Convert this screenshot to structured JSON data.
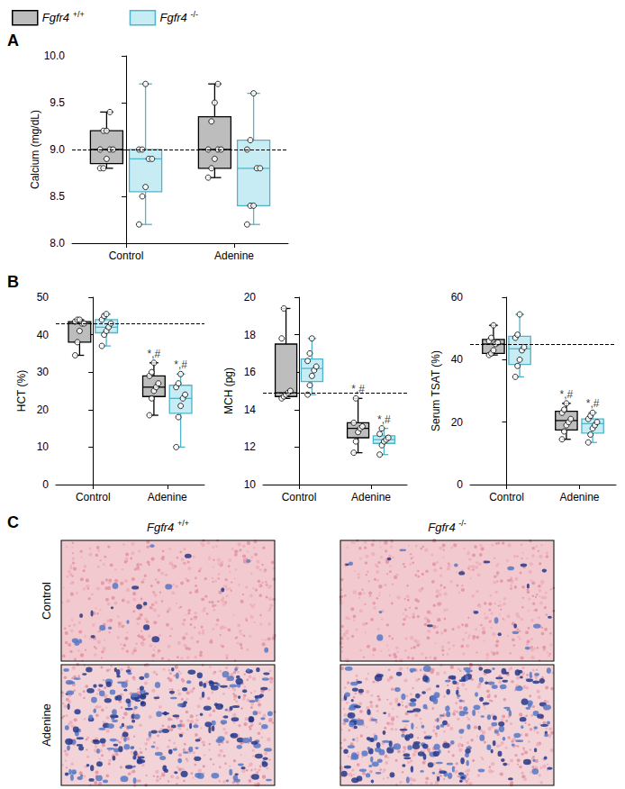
{
  "chart_data": [
    {
      "type": "boxplot",
      "panel": "A",
      "legend": "top-left",
      "ylabel": "Calcium (mg/dL)",
      "categories": [
        "Control",
        "Adenine"
      ],
      "ylim": [
        8,
        10
      ],
      "yticks": [
        {
          "value": 8,
          "label": "8.0"
        },
        {
          "value": 8.5,
          "label": "8.5"
        },
        {
          "value": 9,
          "label": "9.0"
        },
        {
          "value": 9.5,
          "label": "9.5"
        },
        {
          "value": 10,
          "label": "10.0"
        }
      ],
      "reference": 9.0,
      "series": [
        {
          "name": "Fgfr4 +/+",
          "color": "#bdbdbd",
          "boxes": [
            [
              8.8,
              8.85,
              9.0,
              9.2,
              9.4
            ],
            [
              8.7,
              8.8,
              9.0,
              9.35,
              9.7
            ]
          ],
          "points": [
            [
              8.8,
              8.8,
              8.9,
              9.0,
              9.0,
              9.0,
              9.2,
              9.2,
              9.4
            ],
            [
              8.7,
              8.8,
              8.9,
              9.0,
              9.0,
              9.0,
              9.3,
              9.5,
              9.7
            ]
          ],
          "annotations": [
            null,
            null
          ]
        },
        {
          "name": "Fgfr4 -/-",
          "color": "#c8ecf4",
          "boxes": [
            [
              8.2,
              8.55,
              8.9,
              9.0,
              9.7
            ],
            [
              8.2,
              8.4,
              8.8,
              9.1,
              9.6
            ]
          ],
          "points": [
            [
              8.2,
              8.5,
              8.6,
              8.9,
              8.9,
              9.0,
              9.0,
              9.7
            ],
            [
              8.2,
              8.4,
              8.4,
              8.8,
              8.8,
              9.0,
              9.1,
              9.6
            ]
          ],
          "annotations": [
            null,
            null
          ]
        }
      ]
    },
    {
      "type": "boxplot",
      "panel": "B",
      "ylabel": "HCT (%)",
      "categories": [
        "Control",
        "Adenine"
      ],
      "ylim": [
        0,
        50
      ],
      "yticks": [
        0,
        10,
        20,
        30,
        40,
        50
      ],
      "reference": 43,
      "series": [
        {
          "name": "Fgfr4 +/+",
          "color": "#bdbdbd",
          "boxes": [
            [
              34.5,
              38,
              43,
              43.5,
              44
            ],
            [
              18.5,
              23.5,
              26,
              29,
              32.5
            ]
          ],
          "points": [
            [
              34.5,
              38,
              41,
              43,
              43,
              43.5,
              44,
              44
            ],
            [
              18.5,
              23,
              25,
              26,
              27,
              29,
              30,
              32.5
            ]
          ],
          "annotations": [
            null,
            "*,#"
          ]
        },
        {
          "name": "Fgfr4 -/-",
          "color": "#c8ecf4",
          "boxes": [
            [
              37,
              40.5,
              42,
              44,
              45.5
            ],
            [
              10,
              19,
              23,
              26.5,
              29.5
            ]
          ],
          "points": [
            [
              37,
              40,
              41,
              42,
              43,
              44,
              45,
              45.5
            ],
            [
              10,
              18,
              21,
              23,
              24,
              26,
              27,
              29.5
            ]
          ],
          "annotations": [
            null,
            "*,#"
          ]
        }
      ]
    },
    {
      "type": "boxplot",
      "ylabel": "MCH (pg)",
      "categories": [
        "Control",
        "Adenine"
      ],
      "ylim": [
        10,
        20
      ],
      "yticks": [
        10,
        12,
        14,
        16,
        18,
        20
      ],
      "reference": 14.9,
      "series": [
        {
          "name": "Fgfr4 +/+",
          "color": "#bdbdbd",
          "boxes": [
            [
              14.6,
              14.7,
              14.9,
              17.5,
              19.4
            ],
            [
              11.7,
              12.5,
              13.0,
              13.3,
              14.6
            ]
          ],
          "points": [
            [
              14.6,
              14.7,
              14.8,
              14.9,
              15.0,
              17.8,
              19.4
            ],
            [
              11.7,
              12.3,
              12.8,
              13.0,
              13.1,
              13.3,
              14.6
            ]
          ],
          "annotations": [
            null,
            "*,#"
          ]
        },
        {
          "name": "Fgfr4 -/-",
          "color": "#c8ecf4",
          "boxes": [
            [
              14.8,
              15.5,
              16.2,
              16.7,
              17.8
            ],
            [
              11.6,
              12.2,
              12.4,
              12.6,
              13.0
            ]
          ],
          "points": [
            [
              14.8,
              15.3,
              15.8,
              16.1,
              16.3,
              16.6,
              17.0,
              17.8
            ],
            [
              11.6,
              12.1,
              12.3,
              12.4,
              12.5,
              12.7,
              13.0
            ]
          ],
          "annotations": [
            null,
            "*,#"
          ]
        }
      ]
    },
    {
      "type": "boxplot",
      "ylabel": "Serum TSAT (%)",
      "categories": [
        "Control",
        "Adenine"
      ],
      "ylim": [
        0,
        60
      ],
      "yticks": [
        0,
        20,
        40,
        60
      ],
      "reference": 45,
      "series": [
        {
          "name": "Fgfr4 +/+",
          "color": "#bdbdbd",
          "boxes": [
            [
              41.5,
              42,
              45,
              46.5,
              51
            ],
            [
              14.5,
              17.5,
              20.5,
              23.5,
              26
            ]
          ],
          "points": [
            [
              41.5,
              42,
              43,
              45,
              45.5,
              46,
              47,
              51
            ],
            [
              14.5,
              17,
              19,
              20,
              21,
              23,
              24,
              26
            ]
          ],
          "annotations": [
            null,
            "*,#"
          ]
        },
        {
          "name": "Fgfr4 -/-",
          "color": "#c8ecf4",
          "boxes": [
            [
              34.5,
              38.5,
              43.5,
              47.5,
              54.5
            ],
            [
              13.5,
              16.5,
              19.5,
              21,
              23
            ]
          ],
          "points": [
            [
              34.5,
              38,
              40,
              43,
              44,
              47,
              48,
              54.5
            ],
            [
              13.5,
              16,
              18,
              19,
              20,
              21,
              22,
              23
            ]
          ],
          "annotations": [
            null,
            "*,#"
          ]
        }
      ]
    }
  ],
  "panel_c": {
    "panel": "C",
    "columns": [
      "Fgfr4 +/+",
      "Fgfr4 -/-"
    ],
    "rows": [
      "Control",
      "Adenine"
    ]
  }
}
